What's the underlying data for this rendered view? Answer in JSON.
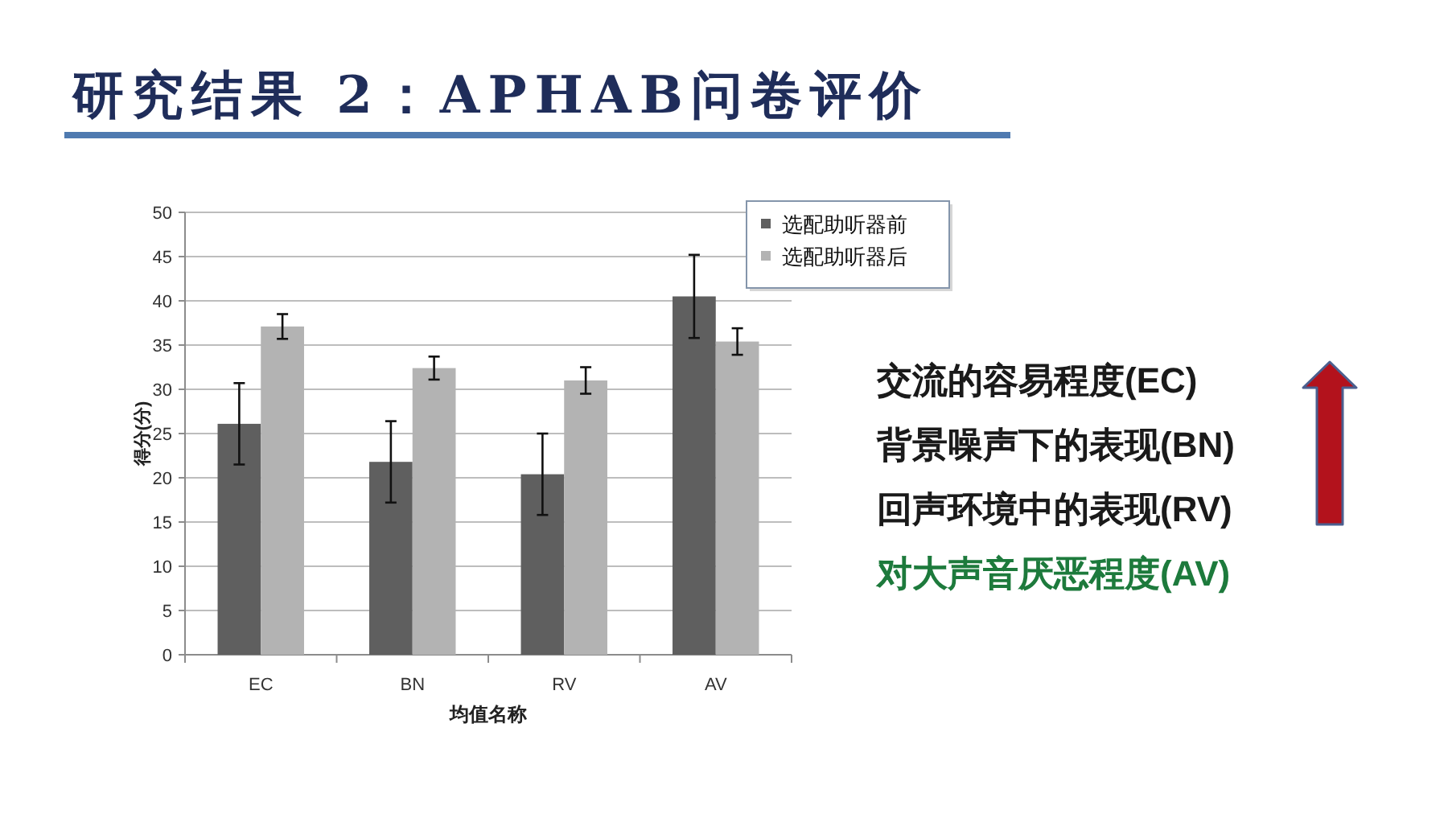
{
  "chart_data": {
    "type": "bar",
    "title": "研究结果 2：APHAB问卷评价",
    "xlabel": "均值名称",
    "ylabel": "得分(分)",
    "categories": [
      "EC",
      "BN",
      "RV",
      "AV"
    ],
    "series": [
      {
        "name": "选配助听器前",
        "color": "#5f5f5f",
        "values": [
          26.1,
          21.8,
          20.4,
          40.5
        ],
        "errors": [
          4.6,
          4.6,
          4.6,
          4.7
        ]
      },
      {
        "name": "选配助听器后",
        "color": "#b3b3b3",
        "values": [
          37.1,
          32.4,
          31.0,
          35.4
        ],
        "errors": [
          1.4,
          1.3,
          1.5,
          1.5
        ]
      }
    ],
    "ylim": [
      0,
      50
    ],
    "yticks": [
      0,
      5,
      10,
      15,
      20,
      25,
      30,
      35,
      40,
      45,
      50
    ],
    "grid": "y",
    "legend": "top right",
    "annotations": [
      "交流的容易程度(EC)",
      "背景噪声下的表现(BN)",
      "回声环境中的表现(RV)",
      "对大声音厌恶程度(AV)"
    ]
  }
}
